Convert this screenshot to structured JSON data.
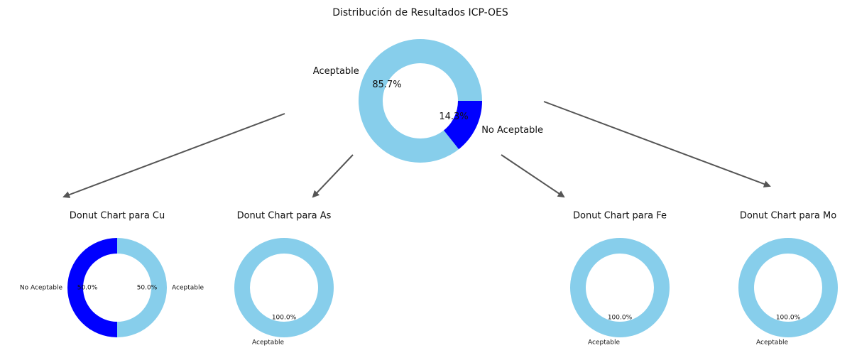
{
  "chart_data": [
    {
      "type": "donut",
      "title": "Distribución de Resultados ICP-OES",
      "categories": [
        "Aceptable",
        "No Aceptable"
      ],
      "values": [
        85.7,
        14.3
      ],
      "value_labels": [
        "85.7%",
        "14.3%"
      ],
      "colors": [
        "#87ceeb",
        "#0000ff"
      ]
    },
    {
      "type": "donut",
      "title": "Donut Chart para Cu",
      "categories": [
        "Aceptable",
        "No Aceptable"
      ],
      "values": [
        50.0,
        50.0
      ],
      "value_labels": [
        "50.0%",
        "50.0%"
      ],
      "colors": [
        "#87ceeb",
        "#0000ff"
      ]
    },
    {
      "type": "donut",
      "title": "Donut Chart para As",
      "categories": [
        "Aceptable"
      ],
      "values": [
        100.0
      ],
      "value_labels": [
        "100.0%"
      ],
      "colors": [
        "#87ceeb"
      ]
    },
    {
      "type": "donut",
      "title": "Donut Chart para Fe",
      "categories": [
        "Aceptable"
      ],
      "values": [
        100.0
      ],
      "value_labels": [
        "100.0%"
      ],
      "colors": [
        "#87ceeb"
      ]
    },
    {
      "type": "donut",
      "title": "Donut Chart para Mo",
      "categories": [
        "Aceptable"
      ],
      "values": [
        100.0
      ],
      "value_labels": [
        "100.0%"
      ],
      "colors": [
        "#87ceeb"
      ]
    }
  ]
}
